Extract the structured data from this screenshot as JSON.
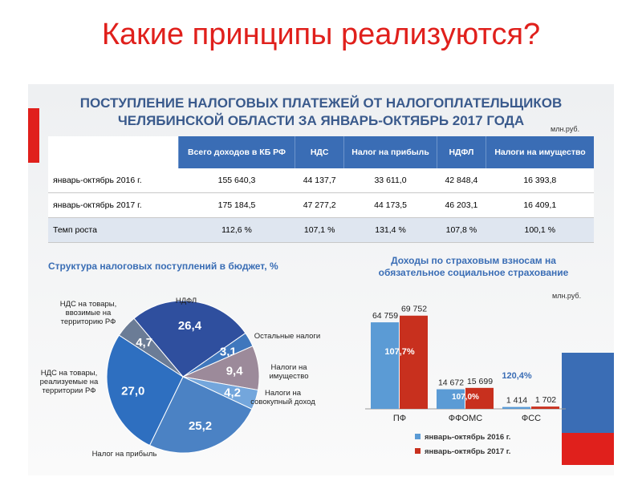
{
  "header": {
    "title": "Какие принципы реализуются?"
  },
  "panel": {
    "title": [
      "ПОСТУПЛЕНИЕ НАЛОГОВЫХ ПЛАТЕЖЕЙ ОТ НАЛОГОПЛАТЕЛЬЩИКОВ",
      "ЧЕЛЯБИНСКОЙ ОБЛАСТИ ЗА ЯНВАРЬ-ОКТЯБРЬ 2017 ГОДА"
    ],
    "unit": "млн.руб."
  },
  "table": {
    "columns": [
      "Всего доходов в КБ РФ",
      "НДС",
      "Налог на прибыль",
      "НДФЛ",
      "Налоги на имущество"
    ],
    "rows": [
      [
        "январь-октябрь 2016 г.",
        "155 640,3",
        "44 137,7",
        "33 611,0",
        "42 848,4",
        "16 393,8"
      ],
      [
        "январь-октябрь 2017 г.",
        "175 184,5",
        "47 277,2",
        "44 173,5",
        "46 203,1",
        "16 409,1"
      ],
      [
        "Темп роста",
        "112,6 %",
        "107,1 %",
        "131,4 %",
        "107,8 %",
        "100,1 %"
      ]
    ]
  },
  "chart_data": [
    {
      "type": "pie",
      "title": "Структура налоговых поступлений в бюджет, %",
      "categories": [
        "НДФЛ",
        "Остальные налоги",
        "Налоги на имущество",
        "Налоги на совокупный доход",
        "Налог на прибыль",
        "НДС на товары, реализуемые на территории РФ",
        "НДС на товары, ввозимые на территорию РФ"
      ],
      "values": [
        26.4,
        3.1,
        9.4,
        4.2,
        25.2,
        27.0,
        4.7
      ],
      "value_labels": [
        "26,4",
        "3,1",
        "9,4",
        "4,2",
        "25,2",
        "27,0",
        "4,7"
      ],
      "colors": [
        "#2f4f9e",
        "#3f77bd",
        "#9c8a9a",
        "#73a6dc",
        "#4b82c4",
        "#2e6fc0",
        "#6b7c96"
      ]
    },
    {
      "type": "bar",
      "title": "Доходы по страховым взносам на обязательное социальное страхование",
      "unit": "млн.руб.",
      "categories": [
        "ПФ",
        "ФФОМС",
        "ФСС"
      ],
      "ylim": [
        0,
        75000
      ],
      "series": [
        {
          "name": "январь-октябрь 2016 г.",
          "color": "#5b9bd5",
          "values": [
            64759,
            14672,
            1414
          ],
          "value_labels": [
            "64 759",
            "14 672",
            "1 414"
          ]
        },
        {
          "name": "январь-октябрь 2017 г.",
          "color": "#c8301e",
          "values": [
            69752,
            15699,
            1702
          ],
          "value_labels": [
            "69 752",
            "15 699",
            "1 702"
          ]
        }
      ],
      "growth": {
        "values": [
          107.7,
          107.0,
          120.4
        ],
        "value_labels": [
          "107,7%",
          "107,0%",
          "120,4%"
        ]
      }
    }
  ]
}
